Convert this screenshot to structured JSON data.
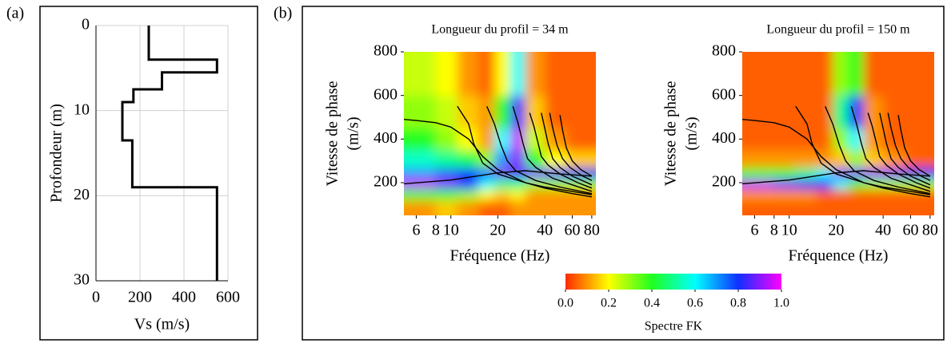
{
  "chart_data": [
    {
      "type": "line",
      "panel_label": "(a)",
      "xlabel": "Vs (m/s)",
      "ylabel": "Profondeur (m)",
      "xlim": [
        0,
        600
      ],
      "xticks": [
        0,
        200,
        400,
        600
      ],
      "ylim": [
        0,
        30
      ],
      "yticks": [
        0,
        10,
        20,
        30
      ],
      "y_inverted": true,
      "grid": true,
      "series": [
        {
          "color": "#000000",
          "x": [
            240,
            240,
            550,
            550,
            300,
            300,
            170,
            170,
            120,
            120,
            165,
            165,
            550,
            550
          ],
          "values": [
            0,
            4,
            4,
            5.5,
            5.5,
            7.5,
            7.5,
            9,
            9,
            13.5,
            13.5,
            19,
            19,
            30
          ]
        }
      ]
    },
    {
      "type": "heatmap",
      "panel_label": "(b)",
      "title": "Longueur du profil = 34 m",
      "xlabel": "Fréquence (Hz)",
      "ylabel": [
        "Vitesse de phase",
        "(m/s)"
      ],
      "log_x": true,
      "xlim": [
        5,
        85
      ],
      "xticks": [
        6,
        8,
        10,
        20,
        40,
        60,
        80
      ],
      "ylim": [
        50,
        800
      ],
      "yticks": [
        200,
        400,
        600,
        800
      ],
      "colormap": [
        "#ff2a00",
        "#ffff00",
        "#20ff20",
        "#00ffff",
        "#1030ff",
        "#ff00ff"
      ],
      "colorbar": {
        "label": "Spectre FK",
        "zlim": [
          0,
          1
        ],
        "zticks": [
          {
            "value": 0,
            "label": "0.0"
          },
          {
            "value": 0.2,
            "label": "0.2"
          },
          {
            "value": 0.4,
            "label": "0.4"
          },
          {
            "value": 0.6,
            "label": "0.6"
          },
          {
            "value": 0.8,
            "label": "0.8"
          },
          {
            "value": 1,
            "label": "1.0"
          }
        ]
      },
      "xbins": [
        5,
        6,
        8,
        11,
        15,
        19,
        24,
        30,
        40,
        55,
        85
      ],
      "ybins": [
        50,
        120,
        170,
        220,
        270,
        350,
        450,
        600,
        800
      ],
      "z": [
        [
          0.1,
          0.1,
          0.15,
          0.1,
          0.05,
          0.05,
          0.1,
          0.1,
          0.1,
          0.1
        ],
        [
          0.4,
          0.4,
          0.4,
          0.3,
          0.2,
          0.15,
          0.2,
          0.1,
          0.1,
          0.1
        ],
        [
          0.95,
          0.95,
          0.9,
          0.8,
          0.6,
          0.5,
          0.5,
          0.3,
          0.3,
          0.3
        ],
        [
          0.7,
          0.7,
          0.75,
          0.8,
          0.75,
          0.9,
          0.85,
          0.9,
          0.85,
          0.8
        ],
        [
          0.55,
          0.55,
          0.5,
          0.45,
          0.3,
          0.7,
          0.9,
          0.4,
          0.2,
          0.15
        ],
        [
          0.4,
          0.4,
          0.3,
          0.2,
          0.1,
          0.6,
          0.95,
          0.25,
          0.1,
          0.05
        ],
        [
          0.3,
          0.3,
          0.25,
          0.15,
          0.1,
          0.4,
          0.85,
          0.15,
          0.05,
          0.05
        ],
        [
          0.25,
          0.25,
          0.2,
          0.1,
          0.05,
          0.2,
          0.6,
          0.1,
          0.05,
          0.05
        ]
      ],
      "series": [
        {
          "color": "#000000",
          "x": [
            5,
            6,
            8,
            10,
            13,
            16,
            20,
            30,
            40,
            60,
            80
          ],
          "values": [
            490,
            485,
            475,
            455,
            400,
            320,
            260,
            200,
            175,
            150,
            135
          ]
        },
        {
          "color": "#000000",
          "x": [
            5,
            10,
            20,
            30,
            50,
            80
          ],
          "values": [
            195,
            212,
            245,
            255,
            240,
            230
          ]
        },
        {
          "color": "#000000",
          "x": [
            11,
            13,
            14,
            16,
            20,
            30,
            40,
            60,
            80
          ],
          "values": [
            550,
            470,
            380,
            290,
            240,
            200,
            180,
            160,
            145
          ]
        },
        {
          "color": "#000000",
          "x": [
            17,
            19,
            21,
            23,
            26,
            35,
            50,
            80
          ],
          "values": [
            550,
            470,
            370,
            300,
            255,
            210,
            180,
            150
          ]
        },
        {
          "color": "#000000",
          "x": [
            25,
            27,
            29,
            31,
            35,
            45,
            60,
            80
          ],
          "values": [
            550,
            470,
            380,
            310,
            270,
            220,
            190,
            160
          ]
        },
        {
          "color": "#000000",
          "x": [
            32,
            34,
            36,
            38,
            42,
            50,
            65,
            80
          ],
          "values": [
            520,
            460,
            390,
            320,
            280,
            240,
            200,
            175
          ]
        },
        {
          "color": "#000000",
          "x": [
            38,
            40,
            42,
            45,
            50,
            60,
            80
          ],
          "values": [
            520,
            450,
            380,
            310,
            270,
            230,
            190
          ]
        },
        {
          "color": "#000000",
          "x": [
            43,
            45,
            48,
            52,
            58,
            70,
            80
          ],
          "values": [
            520,
            450,
            370,
            310,
            270,
            230,
            210
          ]
        },
        {
          "color": "#000000",
          "x": [
            50,
            52,
            55,
            60,
            68,
            80
          ],
          "values": [
            510,
            440,
            360,
            300,
            260,
            230
          ]
        }
      ]
    },
    {
      "type": "heatmap",
      "title": "Longueur du profil = 150 m",
      "xlabel": "Fréquence (Hz)",
      "ylabel": [
        "Vitesse de phase",
        "(m/s)"
      ],
      "log_x": true,
      "xlim": [
        5,
        85
      ],
      "xticks": [
        6,
        8,
        10,
        20,
        40,
        60,
        80
      ],
      "ylim": [
        50,
        800
      ],
      "yticks": [
        200,
        400,
        600,
        800
      ],
      "colormap": [
        "#ff2a00",
        "#ffff00",
        "#20ff20",
        "#00ffff",
        "#1030ff",
        "#ff00ff"
      ],
      "xbins": [
        5,
        6,
        8,
        11,
        15,
        19,
        24,
        30,
        40,
        55,
        85
      ],
      "ybins": [
        50,
        120,
        170,
        220,
        270,
        350,
        450,
        600,
        800
      ],
      "z": [
        [
          0.05,
          0.05,
          0.05,
          0.05,
          0.05,
          0.05,
          0.05,
          0.05,
          0.05,
          0.05
        ],
        [
          0.1,
          0.1,
          0.1,
          0.1,
          0.05,
          0.05,
          0.05,
          0.05,
          0.05,
          0.05
        ],
        [
          0.95,
          0.95,
          0.9,
          0.85,
          0.8,
          0.6,
          0.4,
          0.3,
          0.3,
          0.3
        ],
        [
          0.4,
          0.4,
          0.4,
          0.5,
          0.6,
          0.9,
          0.9,
          0.9,
          0.9,
          0.85
        ],
        [
          0.1,
          0.1,
          0.1,
          0.1,
          0.1,
          0.15,
          0.3,
          0.15,
          0.1,
          0.05
        ],
        [
          0.05,
          0.05,
          0.05,
          0.05,
          0.05,
          0.3,
          0.6,
          0.1,
          0.05,
          0.05
        ],
        [
          0.05,
          0.05,
          0.05,
          0.05,
          0.05,
          0.5,
          0.8,
          0.1,
          0.05,
          0.05
        ],
        [
          0.05,
          0.05,
          0.05,
          0.05,
          0.05,
          0.3,
          0.4,
          0.05,
          0.05,
          0.05
        ]
      ],
      "series": [
        {
          "color": "#000000",
          "x": [
            5,
            6,
            8,
            10,
            13,
            16,
            20,
            30,
            40,
            60,
            80
          ],
          "values": [
            490,
            485,
            475,
            455,
            400,
            320,
            260,
            200,
            175,
            150,
            135
          ]
        },
        {
          "color": "#000000",
          "x": [
            5,
            10,
            20,
            30,
            50,
            80
          ],
          "values": [
            195,
            212,
            245,
            255,
            240,
            230
          ]
        },
        {
          "color": "#000000",
          "x": [
            11,
            13,
            14,
            16,
            20,
            30,
            40,
            60,
            80
          ],
          "values": [
            550,
            470,
            380,
            290,
            240,
            200,
            180,
            160,
            145
          ]
        },
        {
          "color": "#000000",
          "x": [
            17,
            19,
            21,
            23,
            26,
            35,
            50,
            80
          ],
          "values": [
            550,
            470,
            370,
            300,
            255,
            210,
            180,
            150
          ]
        },
        {
          "color": "#000000",
          "x": [
            25,
            27,
            29,
            31,
            35,
            45,
            60,
            80
          ],
          "values": [
            550,
            470,
            380,
            310,
            270,
            220,
            190,
            160
          ]
        },
        {
          "color": "#000000",
          "x": [
            32,
            34,
            36,
            38,
            42,
            50,
            65,
            80
          ],
          "values": [
            520,
            460,
            390,
            320,
            280,
            240,
            200,
            175
          ]
        },
        {
          "color": "#000000",
          "x": [
            38,
            40,
            42,
            45,
            50,
            60,
            80
          ],
          "values": [
            520,
            450,
            380,
            310,
            270,
            230,
            190
          ]
        },
        {
          "color": "#000000",
          "x": [
            43,
            45,
            48,
            52,
            58,
            70,
            80
          ],
          "values": [
            520,
            450,
            370,
            310,
            270,
            230,
            210
          ]
        },
        {
          "color": "#000000",
          "x": [
            50,
            52,
            55,
            60,
            68,
            80
          ],
          "values": [
            510,
            440,
            360,
            300,
            260,
            230
          ]
        }
      ]
    }
  ]
}
